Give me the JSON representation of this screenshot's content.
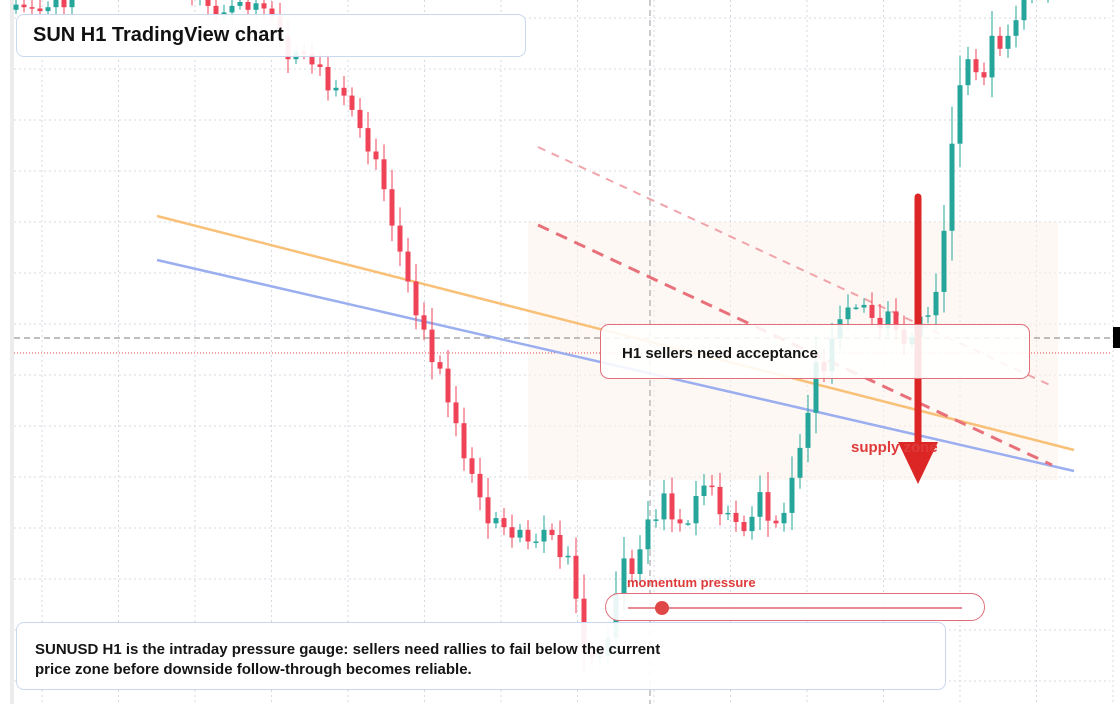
{
  "title": "SUN H1 TradingView chart",
  "caption": {
    "line1": "SUNUSD H1 is the intraday pressure gauge: sellers need rallies to fail below the current",
    "line2": "price zone before downside follow-through becomes reliable."
  },
  "callout": "H1 sellers need acceptance",
  "supply_label": "supply zone",
  "momentum": {
    "label": "momentum pressure",
    "level": 0.1
  },
  "colors": {
    "bull": "#26a69a",
    "bear": "#ef4358",
    "orange_trendline": "#f9c078",
    "blue_trendline": "#9aaef0",
    "dashed_channel": "#e8707a",
    "arrow": "#dc2626",
    "grid": "#d5d9df"
  },
  "icons": [
    "down-arrow-icon",
    "slider-knob-icon"
  ],
  "chart_data": {
    "type": "candlestick",
    "timeframe": "H1",
    "bars": 131,
    "ylim": [
      0,
      100
    ],
    "closes": [
      53.8,
      53.6,
      53.5,
      53.3,
      53.6,
      54.2,
      53.6,
      56.2,
      56.0,
      56.3,
      57.2,
      57.5,
      58.6,
      58.2,
      58.6,
      58.9,
      59.4,
      58.3,
      57.5,
      57.6,
      56.6,
      55.1,
      54.3,
      54.6,
      53.7,
      53.0,
      53.2,
      53.7,
      54.0,
      53.4,
      53.9,
      53.5,
      52.9,
      51.4,
      49.6,
      50.2,
      50.0,
      49.2,
      49.0,
      47.2,
      47.4,
      46.8,
      45.7,
      44.3,
      42.5,
      41.9,
      39.6,
      36.8,
      34.8,
      32.5,
      29.9,
      28.8,
      26.3,
      25.8,
      23.2,
      21.6,
      18.9,
      17.7,
      15.9,
      13.9,
      14.3,
      13.6,
      12.8,
      13.4,
      12.5,
      12.5,
      13.4,
      13.0,
      11.3,
      11.4,
      8.1,
      4.0,
      3.6,
      3.7,
      5.1,
      8.5,
      11.2,
      10.0,
      11.9,
      14.2,
      14.2,
      16.2,
      14.2,
      13.9,
      13.9,
      16.0,
      16.8,
      16.7,
      14.6,
      14.7,
      14.0,
      13.3,
      14.4,
      16.3,
      14.1,
      13.9,
      14.7,
      17.4,
      19.7,
      22.4,
      26.3,
      25.6,
      28.1,
      29.6,
      30.5,
      30.5,
      30.7,
      29.7,
      28.9,
      30.2,
      28.8,
      27.7,
      28.2,
      29.8,
      29.9,
      31.7,
      36.4,
      43.1,
      47.6,
      49.6,
      48.6,
      48.2,
      51.4,
      50.4,
      51.4,
      52.6,
      54.5,
      55.4,
      54.8,
      55.6,
      57.1
    ],
    "resistance_zone_top": 58.0,
    "resistance_zone_bottom": 33.4,
    "reference_level": 50.2
  }
}
